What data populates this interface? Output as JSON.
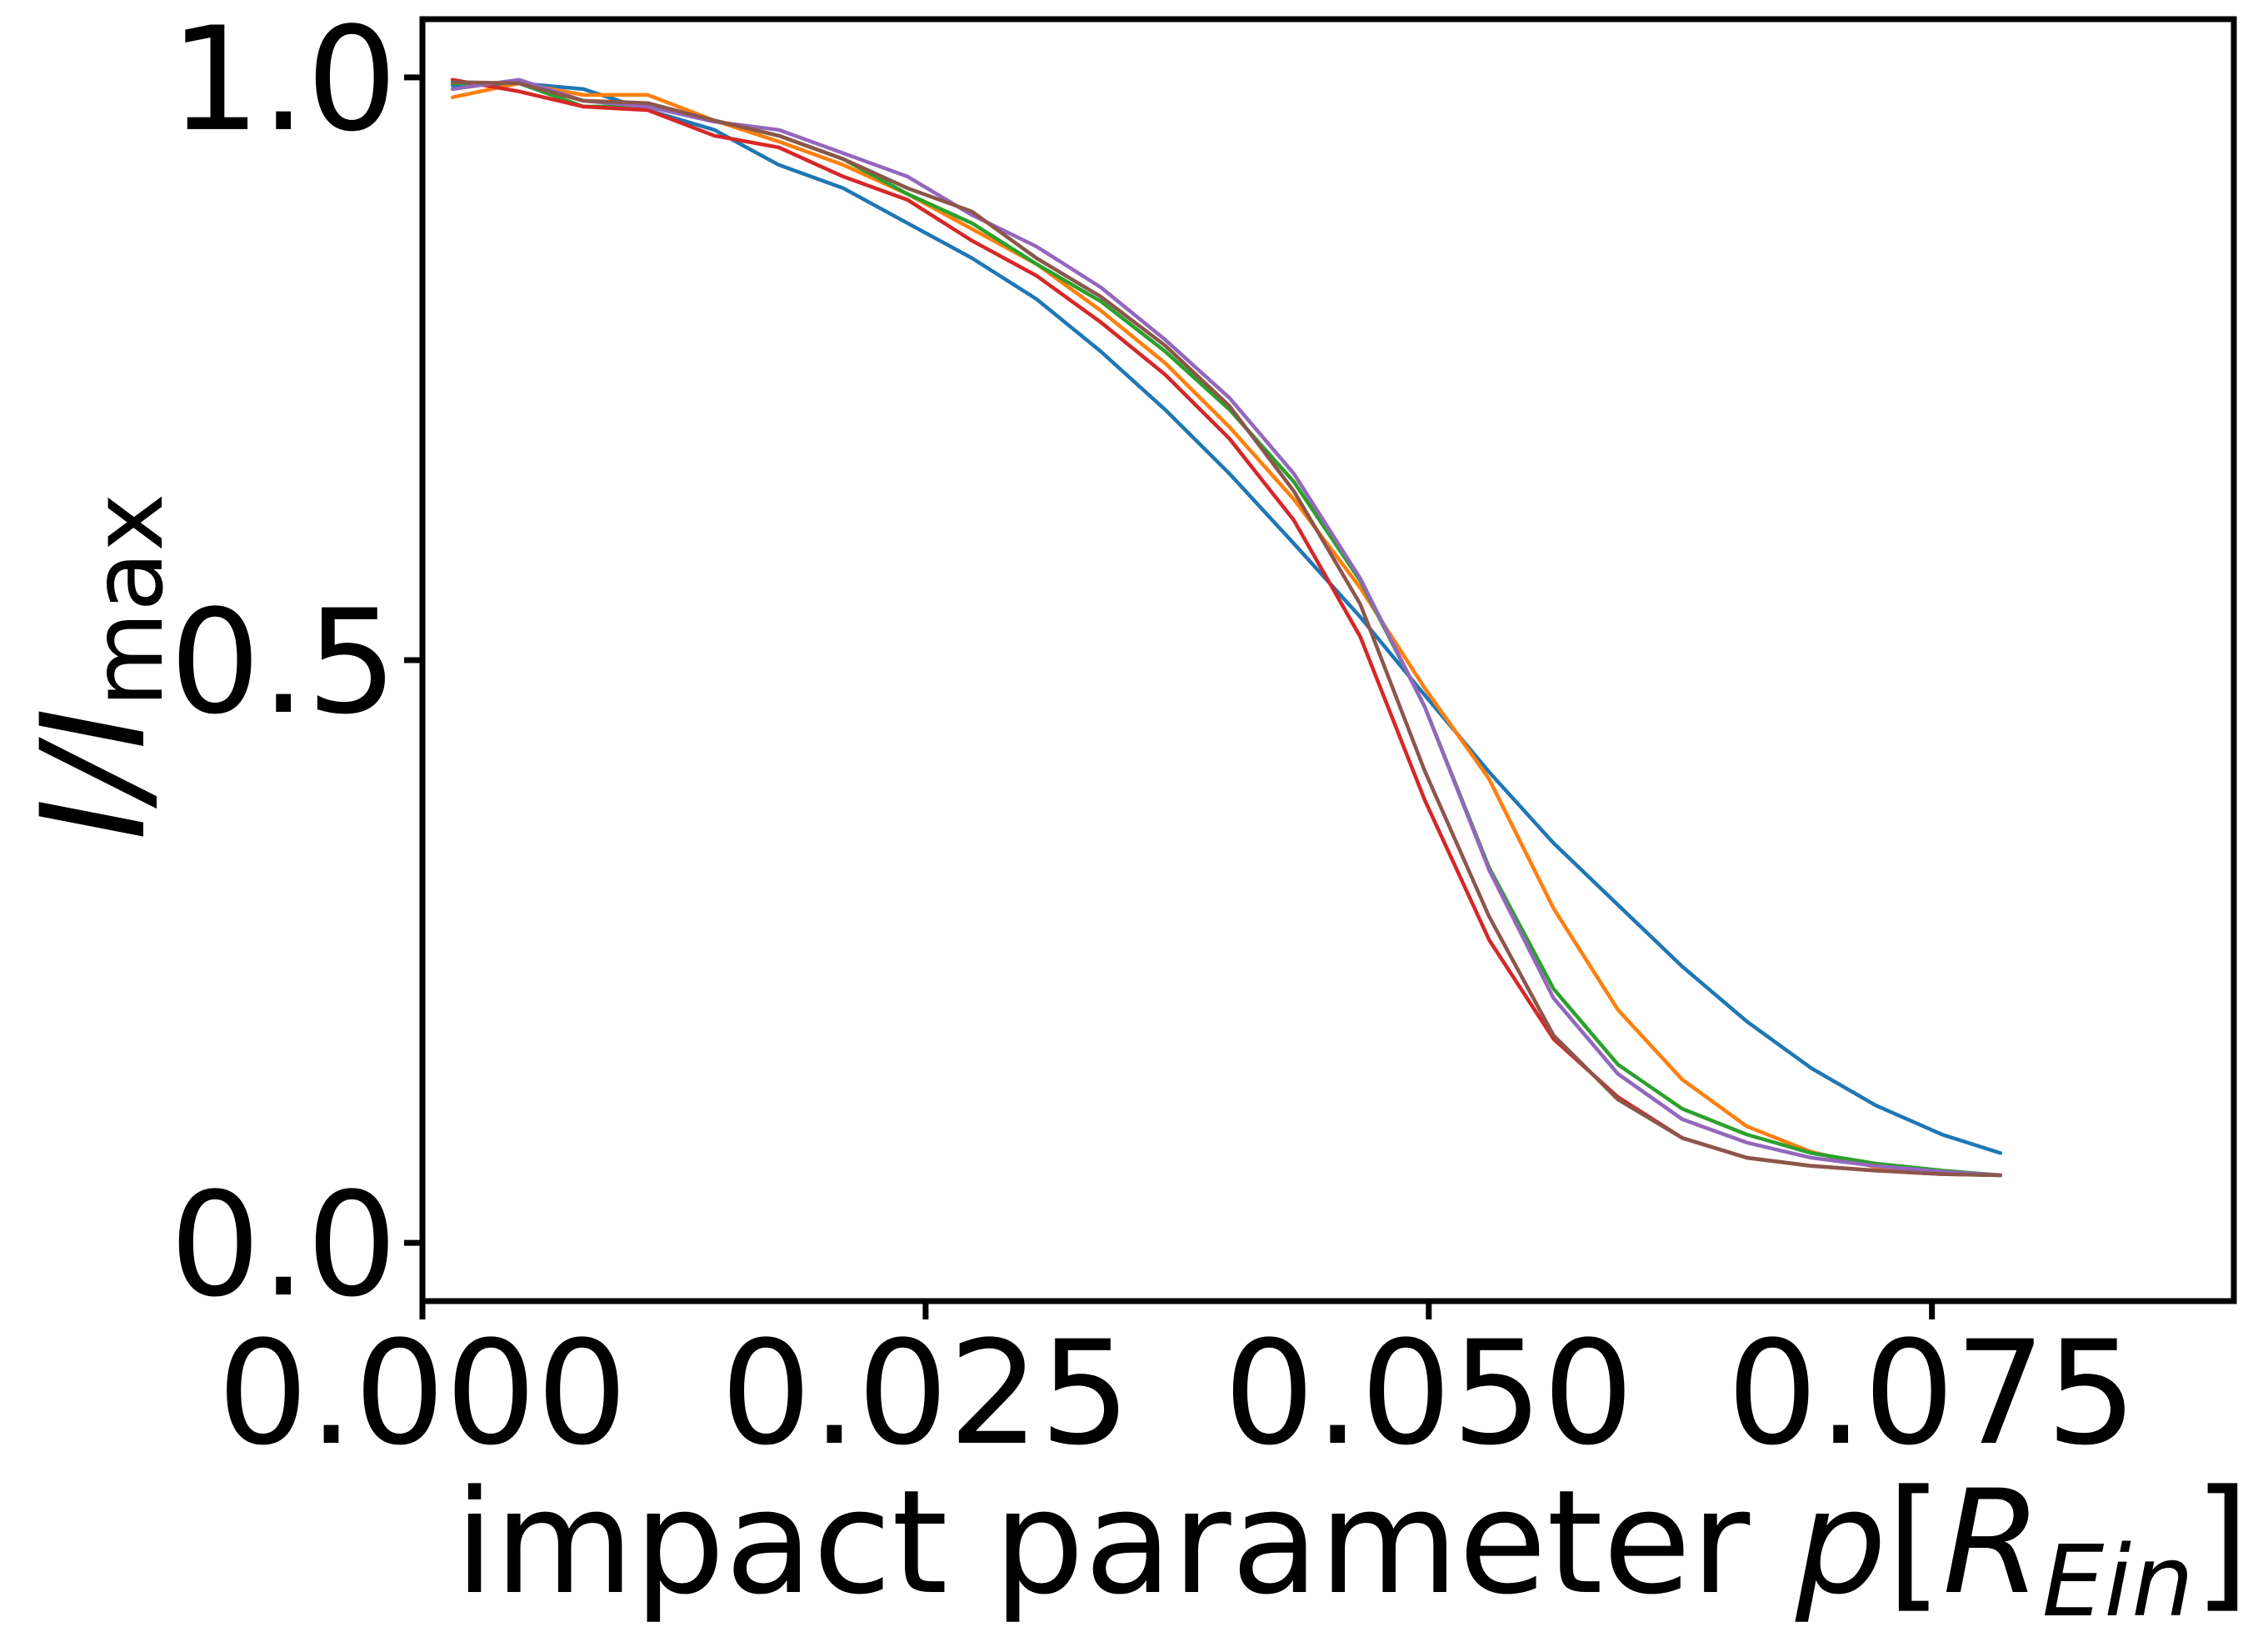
{
  "chart_data": {
    "type": "line",
    "xlabel_text": "impact parameter ",
    "xlabel_var": "p",
    "xlabel_unit_open": "[",
    "xlabel_unit_main": "R",
    "xlabel_unit_sub": "Ein",
    "xlabel_unit_close": "]",
    "ylabel_main": "I/I",
    "ylabel_sub": "max",
    "xlim": [
      0.0,
      0.09
    ],
    "ylim": [
      -0.05,
      1.05
    ],
    "xticks": [
      0.0,
      0.025,
      0.05,
      0.075
    ],
    "xtick_labels": [
      "0.000",
      "0.025",
      "0.050",
      "0.075"
    ],
    "yticks": [
      0.0,
      0.5,
      1.0
    ],
    "ytick_labels": [
      "0.0",
      "0.5",
      "1.0"
    ],
    "grid": false,
    "x": [
      0.0015,
      0.0048,
      0.008,
      0.0112,
      0.0145,
      0.0177,
      0.0209,
      0.0241,
      0.0273,
      0.0305,
      0.0337,
      0.0369,
      0.0401,
      0.0433,
      0.0466,
      0.0498,
      0.053,
      0.0562,
      0.0594,
      0.0626,
      0.0658,
      0.069,
      0.0722,
      0.0755,
      0.0784
    ],
    "series": [
      {
        "color": "#1f77b4",
        "values": [
          0.993,
          0.995,
          0.99,
          0.972,
          0.955,
          0.925,
          0.905,
          0.875,
          0.845,
          0.81,
          0.765,
          0.715,
          0.66,
          0.6,
          0.537,
          0.47,
          0.404,
          0.343,
          0.29,
          0.237,
          0.19,
          0.15,
          0.118,
          0.093,
          0.077
        ]
      },
      {
        "color": "#ff7f0e",
        "values": [
          0.983,
          0.995,
          0.985,
          0.985,
          0.963,
          0.945,
          0.925,
          0.9,
          0.87,
          0.84,
          0.8,
          0.755,
          0.7,
          0.638,
          0.562,
          0.476,
          0.398,
          0.287,
          0.2,
          0.14,
          0.1,
          0.078,
          0.065,
          0.06,
          0.058
        ]
      },
      {
        "color": "#2ca02c",
        "values": [
          0.995,
          0.995,
          0.975,
          0.975,
          0.963,
          0.95,
          0.93,
          0.9,
          0.875,
          0.84,
          0.808,
          0.765,
          0.715,
          0.653,
          0.568,
          0.46,
          0.322,
          0.218,
          0.153,
          0.115,
          0.093,
          0.077,
          0.068,
          0.062,
          0.058
        ]
      },
      {
        "color": "#d62728",
        "values": [
          0.998,
          0.988,
          0.975,
          0.972,
          0.95,
          0.94,
          0.915,
          0.895,
          0.86,
          0.83,
          0.79,
          0.745,
          0.69,
          0.62,
          0.52,
          0.38,
          0.26,
          0.175,
          0.125,
          0.09,
          0.073,
          0.066,
          0.062,
          0.059,
          0.058
        ]
      },
      {
        "color": "#9467bd",
        "values": [
          0.99,
          0.998,
          0.98,
          0.975,
          0.962,
          0.955,
          0.935,
          0.915,
          0.882,
          0.855,
          0.82,
          0.775,
          0.725,
          0.66,
          0.57,
          0.46,
          0.32,
          0.21,
          0.145,
          0.106,
          0.086,
          0.073,
          0.066,
          0.061,
          0.058
        ]
      },
      {
        "color": "#8c564b",
        "values": [
          0.996,
          0.995,
          0.98,
          0.978,
          0.963,
          0.95,
          0.93,
          0.905,
          0.885,
          0.845,
          0.812,
          0.77,
          0.718,
          0.645,
          0.548,
          0.405,
          0.28,
          0.178,
          0.123,
          0.09,
          0.073,
          0.066,
          0.062,
          0.059,
          0.058
        ]
      }
    ]
  }
}
